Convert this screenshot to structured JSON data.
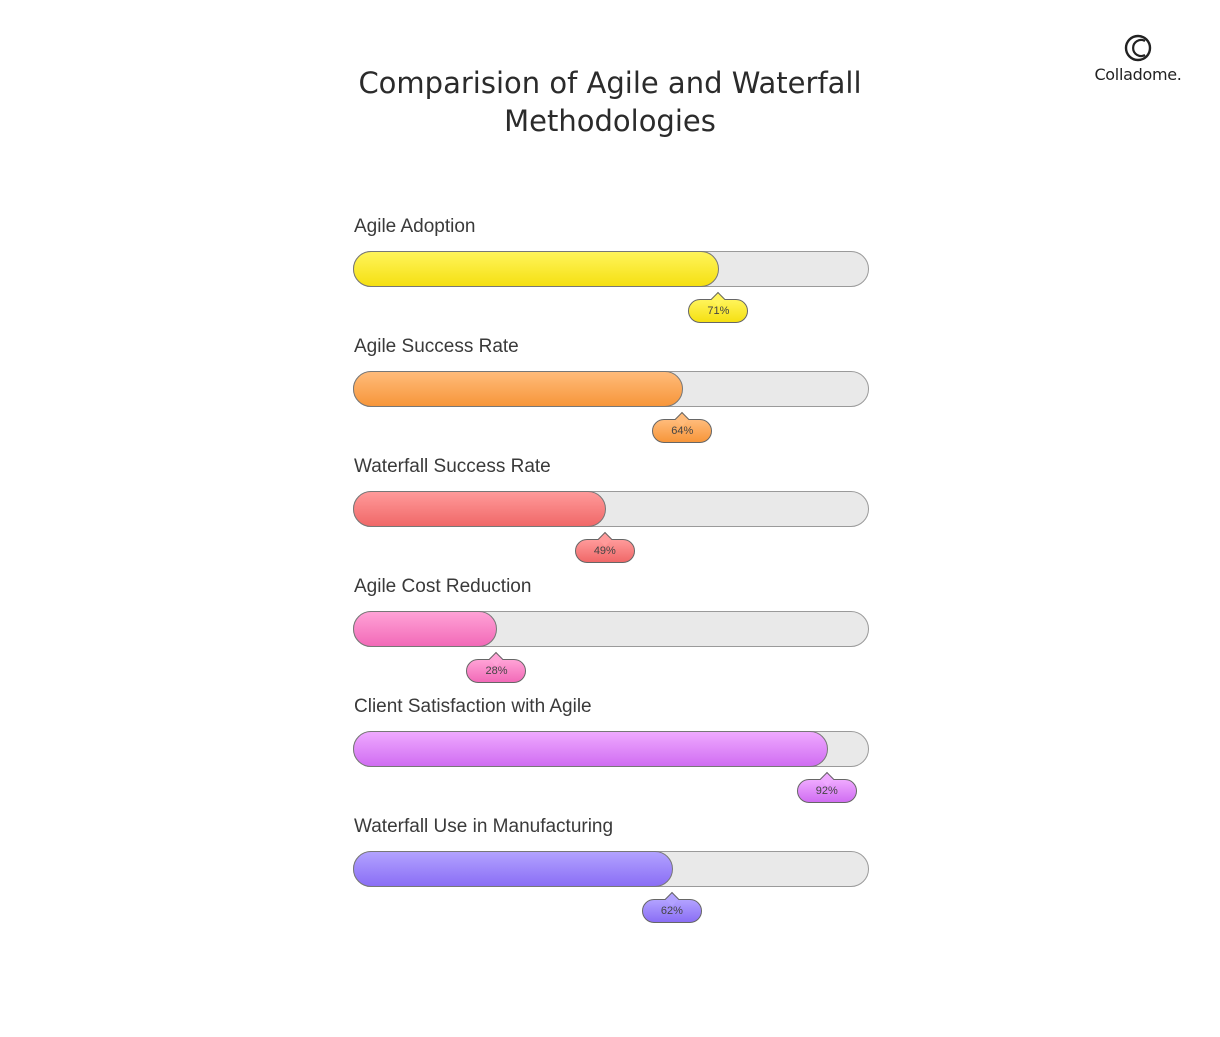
{
  "brand": {
    "name": "Colladome.",
    "icon": "colladome-logo-icon"
  },
  "chart_data": {
    "type": "bar",
    "orientation": "horizontal",
    "title": "Comparision of Agile and Waterfall Methodologies",
    "xlabel": "",
    "ylabel": "",
    "xlim": [
      0,
      100
    ],
    "unit": "%",
    "grid": false,
    "legend": "none",
    "categories": [
      "Agile Adoption",
      "Agile Success Rate",
      "Waterfall Success Rate",
      "Agile Cost Reduction",
      "Client Satisfaction with Agile",
      "Waterfall Use in Manufacturing"
    ],
    "values": [
      71,
      64,
      49,
      28,
      92,
      62
    ],
    "value_labels": [
      "71%",
      "64%",
      "49%",
      "28%",
      "92%",
      "62%"
    ],
    "colors": [
      {
        "light": "#fff45a",
        "dark": "#f5e012"
      },
      {
        "light": "#ffbb7a",
        "dark": "#f7963a"
      },
      {
        "light": "#ff9a9a",
        "dark": "#f06868"
      },
      {
        "light": "#ffa2d6",
        "dark": "#f26ab8"
      },
      {
        "light": "#efa9ff",
        "dark": "#d06df2"
      },
      {
        "light": "#b2a2ff",
        "dark": "#8a6ef5"
      }
    ],
    "track_color": "#e9e9e9"
  }
}
